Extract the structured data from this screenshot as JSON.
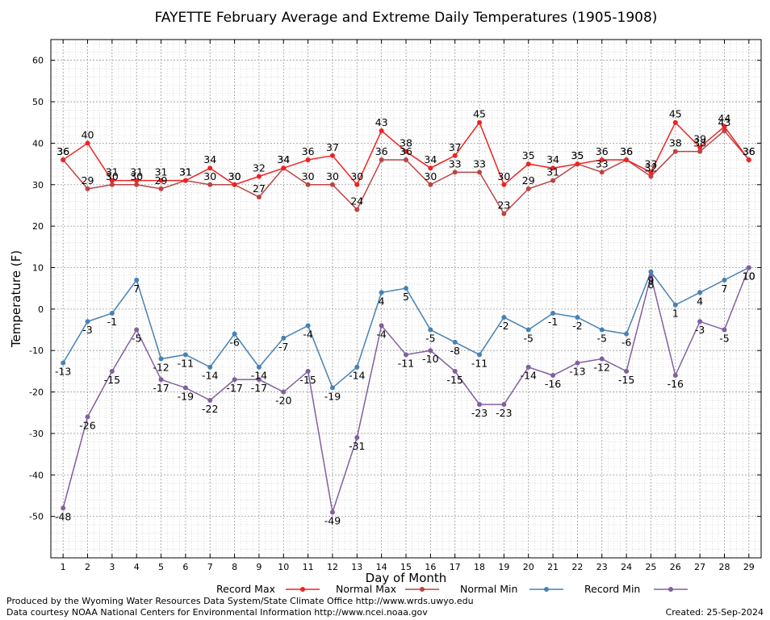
{
  "chart_data": {
    "type": "line",
    "title": "FAYETTE February Average and Extreme Daily Temperatures (1905-1908)",
    "xlabel": "Day of Month",
    "ylabel": "Temperature (F)",
    "ylim": [
      -60,
      65
    ],
    "yticks": [
      -50,
      -40,
      -30,
      -20,
      -10,
      0,
      10,
      20,
      30,
      40,
      50,
      60
    ],
    "xlim": [
      0.5,
      29.5
    ],
    "x": [
      1,
      2,
      3,
      4,
      5,
      6,
      7,
      8,
      9,
      10,
      11,
      12,
      13,
      14,
      15,
      16,
      17,
      18,
      19,
      20,
      21,
      22,
      23,
      24,
      25,
      26,
      27,
      28,
      29
    ],
    "grid": true,
    "legend_position": "bottom",
    "series": [
      {
        "name": "Record Max",
        "color": "#ee2222",
        "values": [
          36,
          40,
          31,
          31,
          31,
          31,
          34,
          30,
          32,
          34,
          36,
          37,
          30,
          43,
          38,
          34,
          37,
          45,
          30,
          35,
          34,
          35,
          36,
          36,
          33,
          45,
          39,
          44,
          36
        ]
      },
      {
        "name": "Normal Max",
        "color": "#bb4444",
        "values": [
          36,
          29,
          30,
          30,
          29,
          31,
          30,
          30,
          27,
          34,
          30,
          30,
          24,
          36,
          36,
          30,
          33,
          33,
          23,
          29,
          31,
          35,
          33,
          36,
          32,
          38,
          38,
          43,
          36
        ]
      },
      {
        "name": "Normal Min",
        "color": "#4682b4",
        "values": [
          -13,
          -3,
          -1,
          7,
          -12,
          -11,
          -14,
          -6,
          -14,
          -7,
          -4,
          -19,
          -14,
          4,
          5,
          -5,
          -8,
          -11,
          -2,
          -5,
          -1,
          -2,
          -5,
          -6,
          9,
          1,
          4,
          7,
          10
        ]
      },
      {
        "name": "Record Min",
        "color": "#8060a0",
        "values": [
          -48,
          -26,
          -15,
          -5,
          -17,
          -19,
          -22,
          -17,
          -17,
          -20,
          -15,
          -49,
          -31,
          -4,
          -11,
          -10,
          -15,
          -23,
          -23,
          -14,
          -16,
          -13,
          -12,
          -15,
          8,
          -16,
          -3,
          -5,
          10
        ]
      }
    ]
  },
  "footer": {
    "line1": "Produced by the Wyoming Water Resources Data System/State Climate Office http://www.wrds.uwyo.edu",
    "line2": "Data courtesy NOAA National Centers for Environmental Information http://www.ncei.noaa.gov",
    "created": "Created: 25-Sep-2024"
  }
}
